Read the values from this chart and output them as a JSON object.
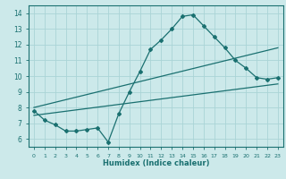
{
  "xlabel": "Humidex (Indice chaleur)",
  "xlim": [
    -0.5,
    23.5
  ],
  "ylim": [
    5.5,
    14.5
  ],
  "xticks": [
    0,
    1,
    2,
    3,
    4,
    5,
    6,
    7,
    8,
    9,
    10,
    11,
    12,
    13,
    14,
    15,
    16,
    17,
    18,
    19,
    20,
    21,
    22,
    23
  ],
  "yticks": [
    6,
    7,
    8,
    9,
    10,
    11,
    12,
    13,
    14
  ],
  "bg_color": "#cce9ea",
  "grid_color": "#aad4d6",
  "line_color": "#1a7070",
  "line1_x": [
    0,
    1,
    2,
    3,
    4,
    5,
    6,
    7,
    8,
    9,
    10,
    11,
    12,
    13,
    14,
    15,
    16,
    17,
    18,
    19,
    20,
    21,
    22,
    23
  ],
  "line1_y": [
    7.8,
    7.2,
    6.9,
    6.5,
    6.5,
    6.6,
    6.7,
    5.8,
    7.6,
    9.0,
    10.3,
    11.7,
    12.3,
    13.0,
    13.8,
    13.9,
    13.2,
    12.5,
    11.8,
    11.0,
    10.5,
    9.9,
    9.8,
    9.9
  ],
  "line2_x": [
    0,
    23
  ],
  "line2_y": [
    7.5,
    9.5
  ],
  "line3_x": [
    0,
    23
  ],
  "line3_y": [
    8.0,
    11.8
  ],
  "marker": "D",
  "markersize": 2.0,
  "linewidth": 0.9
}
